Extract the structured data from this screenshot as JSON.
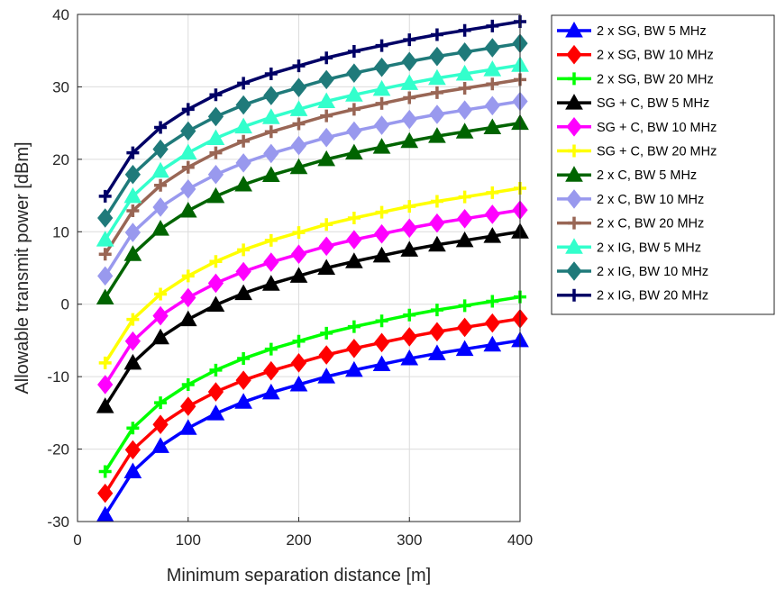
{
  "chart_data": {
    "type": "line",
    "title": "",
    "xlabel": "Minimum separation distance [m]",
    "ylabel": "Allowable transmit power [dBm]",
    "xlim": [
      0,
      400
    ],
    "ylim": [
      -30,
      40
    ],
    "xticks": [
      0,
      100,
      200,
      300,
      400
    ],
    "yticks": [
      -30,
      -20,
      -10,
      0,
      10,
      20,
      30,
      40
    ],
    "grid": true,
    "legend_position": "outside-right-top",
    "x": [
      25,
      50,
      75,
      100,
      125,
      150,
      175,
      200,
      225,
      250,
      275,
      300,
      325,
      350,
      375,
      400
    ],
    "series": [
      {
        "name": "2 x SG, BW 5 MHz",
        "color": "#0000ff",
        "marker": "triangle",
        "values": [
          -29.1,
          -23.1,
          -19.6,
          -17.1,
          -15.1,
          -13.5,
          -12.2,
          -11.1,
          -10.0,
          -9.1,
          -8.3,
          -7.5,
          -6.8,
          -6.2,
          -5.6,
          -5.0
        ]
      },
      {
        "name": "2 x SG, BW 10 MHz",
        "color": "#ff0000",
        "marker": "diamond",
        "values": [
          -26.1,
          -20.1,
          -16.6,
          -14.1,
          -12.1,
          -10.5,
          -9.2,
          -8.1,
          -7.0,
          -6.1,
          -5.3,
          -4.5,
          -3.8,
          -3.2,
          -2.6,
          -2.0
        ]
      },
      {
        "name": "2 x SG, BW 20 MHz",
        "color": "#00ff00",
        "marker": "plus",
        "values": [
          -23.1,
          -17.1,
          -13.6,
          -11.1,
          -9.1,
          -7.5,
          -6.2,
          -5.1,
          -4.0,
          -3.1,
          -2.3,
          -1.5,
          -0.8,
          -0.2,
          0.4,
          1.0
        ]
      },
      {
        "name": "SG + C, BW 5 MHz",
        "color": "#000000",
        "marker": "triangle",
        "values": [
          -14.1,
          -8.1,
          -4.6,
          -2.1,
          -0.1,
          1.5,
          2.8,
          3.9,
          5.0,
          5.9,
          6.7,
          7.5,
          8.2,
          8.8,
          9.4,
          10.0
        ]
      },
      {
        "name": "SG + C, BW 10 MHz",
        "color": "#ff00ff",
        "marker": "diamond",
        "values": [
          -11.1,
          -5.1,
          -1.6,
          0.9,
          2.9,
          4.5,
          5.8,
          6.9,
          8.0,
          8.9,
          9.7,
          10.5,
          11.2,
          11.8,
          12.4,
          13.0
        ]
      },
      {
        "name": "SG + C, BW 20 MHz",
        "color": "#ffff00",
        "marker": "plus",
        "values": [
          -8.1,
          -2.1,
          1.4,
          3.9,
          5.9,
          7.5,
          8.8,
          9.9,
          11.0,
          11.9,
          12.7,
          13.5,
          14.2,
          14.8,
          15.4,
          16.0
        ]
      },
      {
        "name": "2 x C, BW 5 MHz",
        "color": "#006400",
        "marker": "triangle",
        "values": [
          0.9,
          6.9,
          10.4,
          12.9,
          14.9,
          16.5,
          17.8,
          18.9,
          20.0,
          20.9,
          21.7,
          22.5,
          23.2,
          23.8,
          24.4,
          25.0
        ]
      },
      {
        "name": "2 x C, BW 10 MHz",
        "color": "#9999ee",
        "marker": "diamond",
        "values": [
          3.9,
          9.9,
          13.4,
          15.9,
          17.9,
          19.5,
          20.8,
          21.9,
          23.0,
          23.9,
          24.7,
          25.5,
          26.2,
          26.8,
          27.4,
          28.0
        ]
      },
      {
        "name": "2 x C, BW 20 MHz",
        "color": "#996655",
        "marker": "plus",
        "values": [
          6.9,
          12.9,
          16.4,
          18.9,
          20.9,
          22.5,
          23.8,
          24.9,
          26.0,
          26.9,
          27.7,
          28.5,
          29.2,
          29.8,
          30.4,
          31.0
        ]
      },
      {
        "name": "2 x IG, BW 5 MHz",
        "color": "#33ffcc",
        "marker": "triangle",
        "values": [
          8.9,
          14.9,
          18.4,
          20.9,
          22.9,
          24.5,
          25.8,
          26.9,
          28.0,
          28.9,
          29.7,
          30.5,
          31.2,
          31.8,
          32.4,
          33.0
        ]
      },
      {
        "name": "2 x IG, BW 10 MHz",
        "color": "#1f7a7a",
        "marker": "diamond",
        "values": [
          11.9,
          17.9,
          21.4,
          23.9,
          25.9,
          27.5,
          28.8,
          29.9,
          31.0,
          31.9,
          32.7,
          33.5,
          34.2,
          34.8,
          35.4,
          36.0
        ]
      },
      {
        "name": "2 x IG, BW 20 MHz",
        "color": "#000066",
        "marker": "plus",
        "values": [
          14.9,
          20.9,
          24.4,
          26.9,
          28.9,
          30.5,
          31.8,
          32.9,
          34.0,
          34.9,
          35.7,
          36.5,
          37.2,
          37.8,
          38.4,
          39.0
        ]
      }
    ]
  }
}
